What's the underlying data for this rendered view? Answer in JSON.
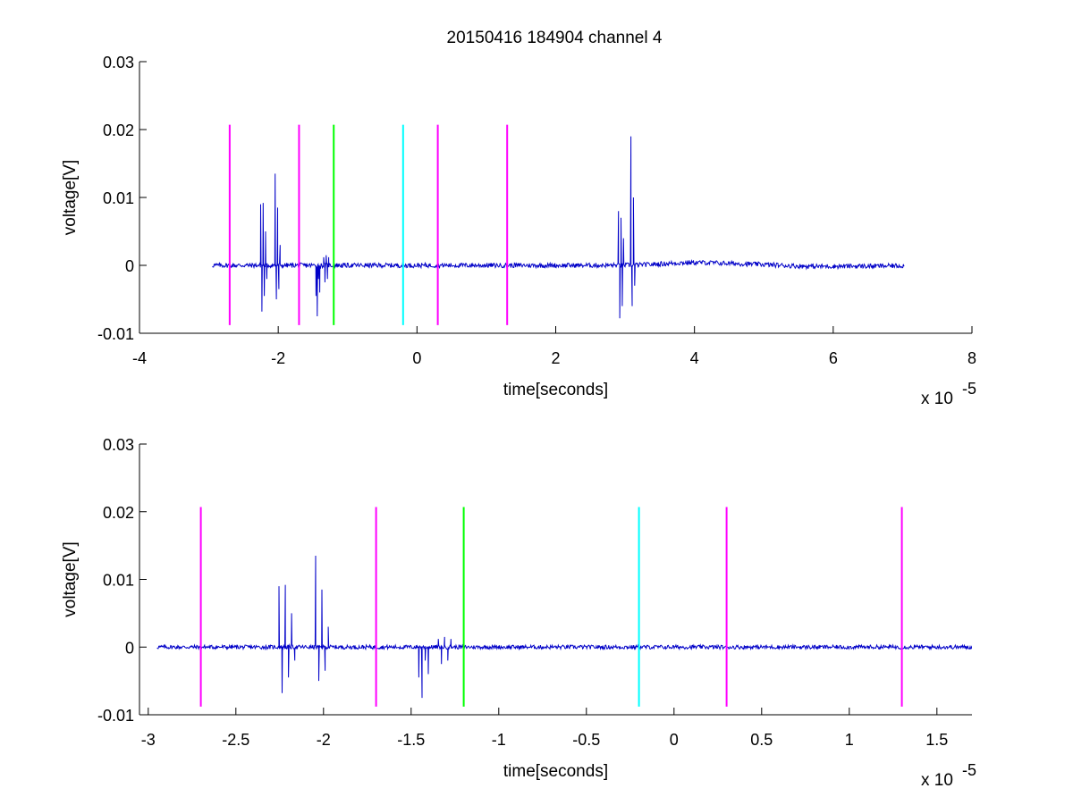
{
  "figure_title": "20150416 184904 channel 4",
  "colors": {
    "signal": "#0000c8",
    "magenta": "#ff00ff",
    "green": "#00ff00",
    "cyan": "#00ffff",
    "axis": "#000000"
  },
  "chart_data": [
    {
      "type": "line",
      "title": "20150416 184904 channel 4",
      "xlabel": "time[seconds]",
      "ylabel": "voltage[V]",
      "x_exponent_label": "x 10",
      "x_exponent_power": "-5",
      "x_scale": 1e-05,
      "xlim": [
        -4,
        8
      ],
      "ylim": [
        -0.01,
        0.03
      ],
      "xticks": [
        -4,
        -2,
        0,
        2,
        4,
        6,
        8
      ],
      "xtick_labels": [
        "-4",
        "-2",
        "0",
        "2",
        "4",
        "6",
        "8"
      ],
      "yticks": [
        -0.01,
        0,
        0.01,
        0.02,
        0.03
      ],
      "ytick_labels": [
        "-0.01",
        "0",
        "0.01",
        "0.02",
        "0.03"
      ],
      "grid": false,
      "series": [
        {
          "color": "#0000c8",
          "x_range": [
            -2.95,
            7.02
          ],
          "baseline": 0.0,
          "noise_amplitude": 0.00035,
          "low_drift": [
            [
              4.0,
              0.0004
            ],
            [
              5.0,
              0.0002
            ],
            [
              5.5,
              -0.0002
            ],
            [
              6.5,
              -0.0001
            ]
          ],
          "bursts": [
            {
              "x": -2.2,
              "points": [
                0.009,
                -0.0068,
                0.0092,
                -0.0045,
                0.005,
                -0.002
              ]
            },
            {
              "x": -2.0,
              "points": [
                0.0135,
                -0.005,
                0.0085,
                -0.0035,
                0.003
              ]
            },
            {
              "x": -1.42,
              "points": [
                -0.0045,
                -0.0075,
                -0.002,
                -0.004
              ]
            },
            {
              "x": -1.3,
              "points": [
                0.0012,
                -0.0025,
                0.0015,
                -0.002,
                0.0012
              ]
            },
            {
              "x": 2.95,
              "points": [
                0.008,
                -0.0078,
                0.007,
                -0.006,
                0.004
              ]
            },
            {
              "x": 3.12,
              "points": [
                0.019,
                -0.006,
                0.01,
                -0.003
              ]
            }
          ]
        }
      ],
      "vertical_markers": [
        {
          "x": -2.7,
          "y_range": [
            -0.0088,
            0.0207
          ],
          "color": "#ff00ff"
        },
        {
          "x": -1.7,
          "y_range": [
            -0.0088,
            0.0207
          ],
          "color": "#ff00ff"
        },
        {
          "x": -1.2,
          "y_range": [
            -0.0088,
            0.0207
          ],
          "color": "#00ff00"
        },
        {
          "x": -0.2,
          "y_range": [
            -0.0088,
            0.0207
          ],
          "color": "#00ffff"
        },
        {
          "x": 0.3,
          "y_range": [
            -0.0088,
            0.0207
          ],
          "color": "#ff00ff"
        },
        {
          "x": 1.3,
          "y_range": [
            -0.0088,
            0.0207
          ],
          "color": "#ff00ff"
        }
      ]
    },
    {
      "type": "line",
      "title": "",
      "xlabel": "time[seconds]",
      "ylabel": "voltage[V]",
      "x_exponent_label": "x 10",
      "x_exponent_power": "-5",
      "x_scale": 1e-05,
      "xlim": [
        -3.05,
        1.7
      ],
      "ylim": [
        -0.01,
        0.03
      ],
      "xticks": [
        -3,
        -2.5,
        -2,
        -1.5,
        -1,
        -0.5,
        0,
        0.5,
        1,
        1.5
      ],
      "xtick_labels": [
        "-3",
        "-2.5",
        "-2",
        "-1.5",
        "-1",
        "-0.5",
        "0",
        "0.5",
        "1",
        "1.5"
      ],
      "yticks": [
        -0.01,
        0,
        0.01,
        0.02,
        0.03
      ],
      "ytick_labels": [
        "-0.01",
        "0",
        "0.01",
        "0.02",
        "0.03"
      ],
      "grid": false,
      "series": [
        {
          "color": "#0000c8",
          "x_range": [
            -2.95,
            1.7
          ],
          "baseline": 0.0,
          "noise_amplitude": 0.0003,
          "low_drift": [],
          "bursts": [
            {
              "x": -2.2,
              "points": [
                0.009,
                -0.0068,
                0.0092,
                -0.0045,
                0.005,
                -0.002
              ]
            },
            {
              "x": -2.0,
              "points": [
                0.0135,
                -0.005,
                0.0085,
                -0.0035,
                0.003
              ]
            },
            {
              "x": -1.42,
              "points": [
                -0.0045,
                -0.0075,
                -0.002,
                -0.004
              ]
            },
            {
              "x": -1.3,
              "points": [
                0.0012,
                -0.0025,
                0.0015,
                -0.002,
                0.0012
              ]
            }
          ]
        }
      ],
      "vertical_markers": [
        {
          "x": -2.7,
          "y_range": [
            -0.0088,
            0.0207
          ],
          "color": "#ff00ff"
        },
        {
          "x": -1.7,
          "y_range": [
            -0.0088,
            0.0207
          ],
          "color": "#ff00ff"
        },
        {
          "x": -1.2,
          "y_range": [
            -0.0088,
            0.0207
          ],
          "color": "#00ff00"
        },
        {
          "x": -0.2,
          "y_range": [
            -0.0088,
            0.0207
          ],
          "color": "#00ffff"
        },
        {
          "x": 0.3,
          "y_range": [
            -0.0088,
            0.0207
          ],
          "color": "#ff00ff"
        },
        {
          "x": 1.3,
          "y_range": [
            -0.0088,
            0.0207
          ],
          "color": "#ff00ff"
        }
      ]
    }
  ]
}
